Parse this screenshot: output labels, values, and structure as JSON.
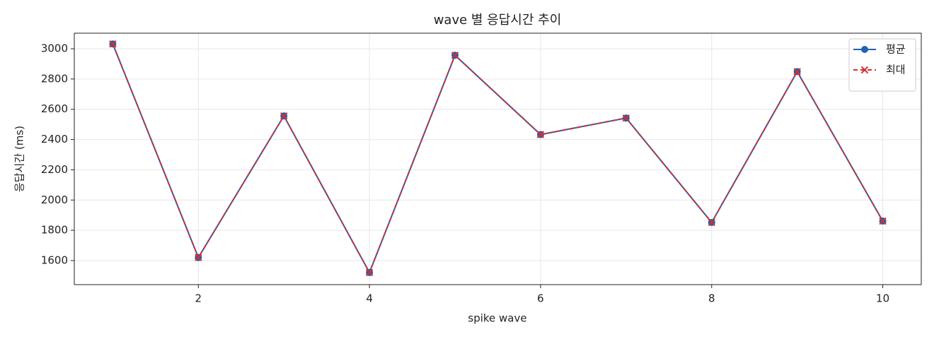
{
  "chart_data": {
    "type": "line",
    "title": "wave 별 응답시간 추이",
    "x_label": "spike wave",
    "y_label": "응답시간 (ms)",
    "x": [
      1,
      2,
      3,
      4,
      5,
      6,
      7,
      8,
      9,
      10
    ],
    "series": [
      {
        "name": "평균",
        "color": "#1f62b4",
        "marker": "circle",
        "linestyle": "solid",
        "values": [
          3032,
          1620,
          2556,
          1521,
          2957,
          2433,
          2542,
          1852,
          2849,
          1861
        ]
      },
      {
        "name": "최대",
        "color": "#d32f2f",
        "marker": "x",
        "linestyle": "dashed",
        "values": [
          3032,
          1620,
          2556,
          1521,
          2957,
          2433,
          2542,
          1852,
          2849,
          1861
        ]
      }
    ],
    "xlim": [
      0.55,
      10.45
    ],
    "ylim": [
      1441,
      3103
    ],
    "xticks": [
      2,
      4,
      6,
      8,
      10
    ],
    "yticks": [
      1600,
      1800,
      2000,
      2200,
      2400,
      2600,
      2800,
      3000
    ],
    "grid": true,
    "legend": "upper right"
  }
}
